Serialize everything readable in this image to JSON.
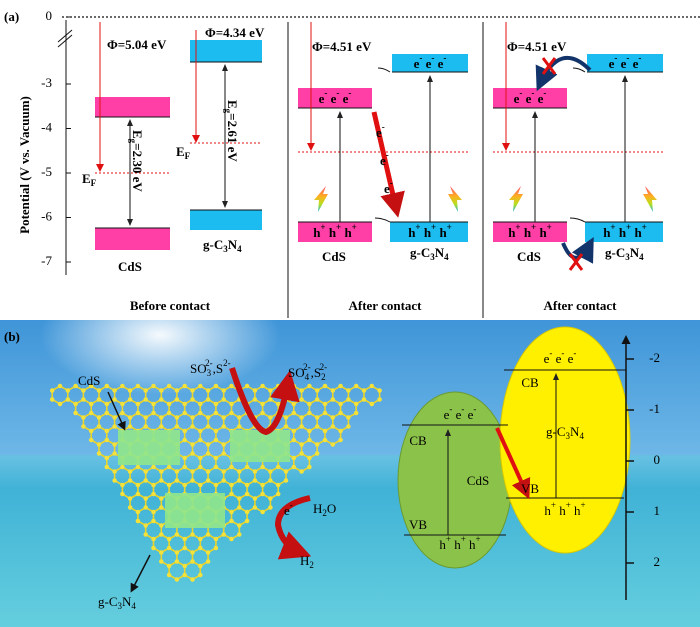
{
  "panel_a": {
    "label": "(a)",
    "axis_title": "Potential (V vs. Vacuum)",
    "yticks": [
      0,
      -3,
      -4,
      -5,
      -6,
      -7
    ],
    "before": {
      "title": "Before contact",
      "phi_cds": "Φ=5.04 eV",
      "phi_gcn": "Φ=4.34 eV",
      "ef_cds": [
        "E",
        {
          "sub": "F"
        }
      ],
      "ef_gcn": [
        "E",
        {
          "sub": "F"
        }
      ],
      "eg_cds": [
        "E",
        {
          "sub": "g"
        },
        "=2.30 eV"
      ],
      "eg_gcn": [
        "E",
        {
          "sub": "g"
        },
        "=2.61 eV"
      ],
      "cds": "CdS",
      "gcn": [
        "g-C",
        {
          "sub": "3"
        },
        "N",
        {
          "sub": "4"
        }
      ]
    },
    "after_1": {
      "title": "After contact",
      "phi": "Φ=4.51 eV",
      "cds_electrons": [
        "e",
        {
          "sup": "-"
        },
        " e",
        {
          "sup": "-"
        },
        " e",
        {
          "sup": "-"
        }
      ],
      "gcn_electrons": [
        "e",
        {
          "sup": "-"
        },
        " e",
        {
          "sup": "-"
        },
        " e",
        {
          "sup": "-"
        }
      ],
      "cds_holes": [
        "h",
        {
          "sup": "+"
        },
        " h",
        {
          "sup": "+"
        },
        " h",
        {
          "sup": "+"
        }
      ],
      "gcn_holes": [
        "h",
        {
          "sup": "+"
        },
        " h",
        {
          "sup": "+"
        },
        " h",
        {
          "sup": "+"
        }
      ],
      "transfer": [
        [
          "e",
          {
            "sup": "-"
          }
        ],
        [
          "e",
          {
            "sup": "-"
          }
        ],
        [
          "e",
          {
            "sup": "-"
          }
        ]
      ],
      "cds": "CdS",
      "gcn": [
        "g-C",
        {
          "sub": "3"
        },
        "N",
        {
          "sub": "4"
        }
      ]
    },
    "after_2": {
      "title": "After contact",
      "phi": "Φ=4.51 eV",
      "cds_electrons": [
        "e",
        {
          "sup": "-"
        },
        " e",
        {
          "sup": "-"
        },
        " e",
        {
          "sup": "-"
        }
      ],
      "gcn_electrons": [
        "e",
        {
          "sup": "-"
        },
        " e",
        {
          "sup": "-"
        },
        " e",
        {
          "sup": "-"
        }
      ],
      "cds_holes": [
        "h",
        {
          "sup": "+"
        },
        " h",
        {
          "sup": "+"
        },
        " h",
        {
          "sup": "+"
        }
      ],
      "gcn_holes": [
        "h",
        {
          "sup": "+"
        },
        " h",
        {
          "sup": "+"
        },
        " h",
        {
          "sup": "+"
        }
      ],
      "cds": "CdS",
      "gcn": [
        "g-C",
        {
          "sub": "3"
        },
        "N",
        {
          "sub": "4"
        }
      ]
    }
  },
  "panel_b": {
    "label": "(b)",
    "cds_label": "CdS",
    "gcn_label": [
      "g-C",
      {
        "sub": "3"
      },
      "N",
      {
        "sub": "4"
      }
    ],
    "sacrificial": [
      "SO",
      {
        "sub": "3"
      },
      {
        "sup": "2-"
      },
      ",S",
      {
        "sup": "2-"
      }
    ],
    "oxidized": [
      "SO",
      {
        "sub": "4"
      },
      {
        "sup": "2-"
      },
      ",S",
      {
        "sub": "2"
      },
      {
        "sup": "2-"
      }
    ],
    "electron": [
      "e",
      {
        "sup": "-"
      }
    ],
    "water": [
      "H",
      {
        "sub": "2"
      },
      "O"
    ],
    "hydrogen": [
      "H",
      {
        "sub": "2"
      }
    ],
    "cds_band": {
      "name": "CdS",
      "cb": "CB",
      "vb": "VB",
      "electrons": [
        "e",
        {
          "sup": "-"
        },
        " e",
        {
          "sup": "-"
        },
        " e",
        {
          "sup": "-"
        }
      ],
      "holes": [
        "h",
        {
          "sup": "+"
        },
        " h",
        {
          "sup": "+"
        },
        " h",
        {
          "sup": "+"
        }
      ]
    },
    "gcn_band": {
      "name": [
        "g-C",
        {
          "sub": "3"
        },
        "N",
        {
          "sub": "4"
        }
      ],
      "cb": "CB",
      "vb": "VB",
      "electrons": [
        "e",
        {
          "sup": "-"
        },
        " e",
        {
          "sup": "-"
        },
        " e",
        {
          "sup": "-"
        }
      ],
      "holes": [
        "h",
        {
          "sup": "+"
        },
        " h",
        {
          "sup": "+"
        },
        " h",
        {
          "sup": "+"
        }
      ]
    },
    "yticks": [
      -2,
      -1,
      0,
      1,
      2
    ]
  }
}
